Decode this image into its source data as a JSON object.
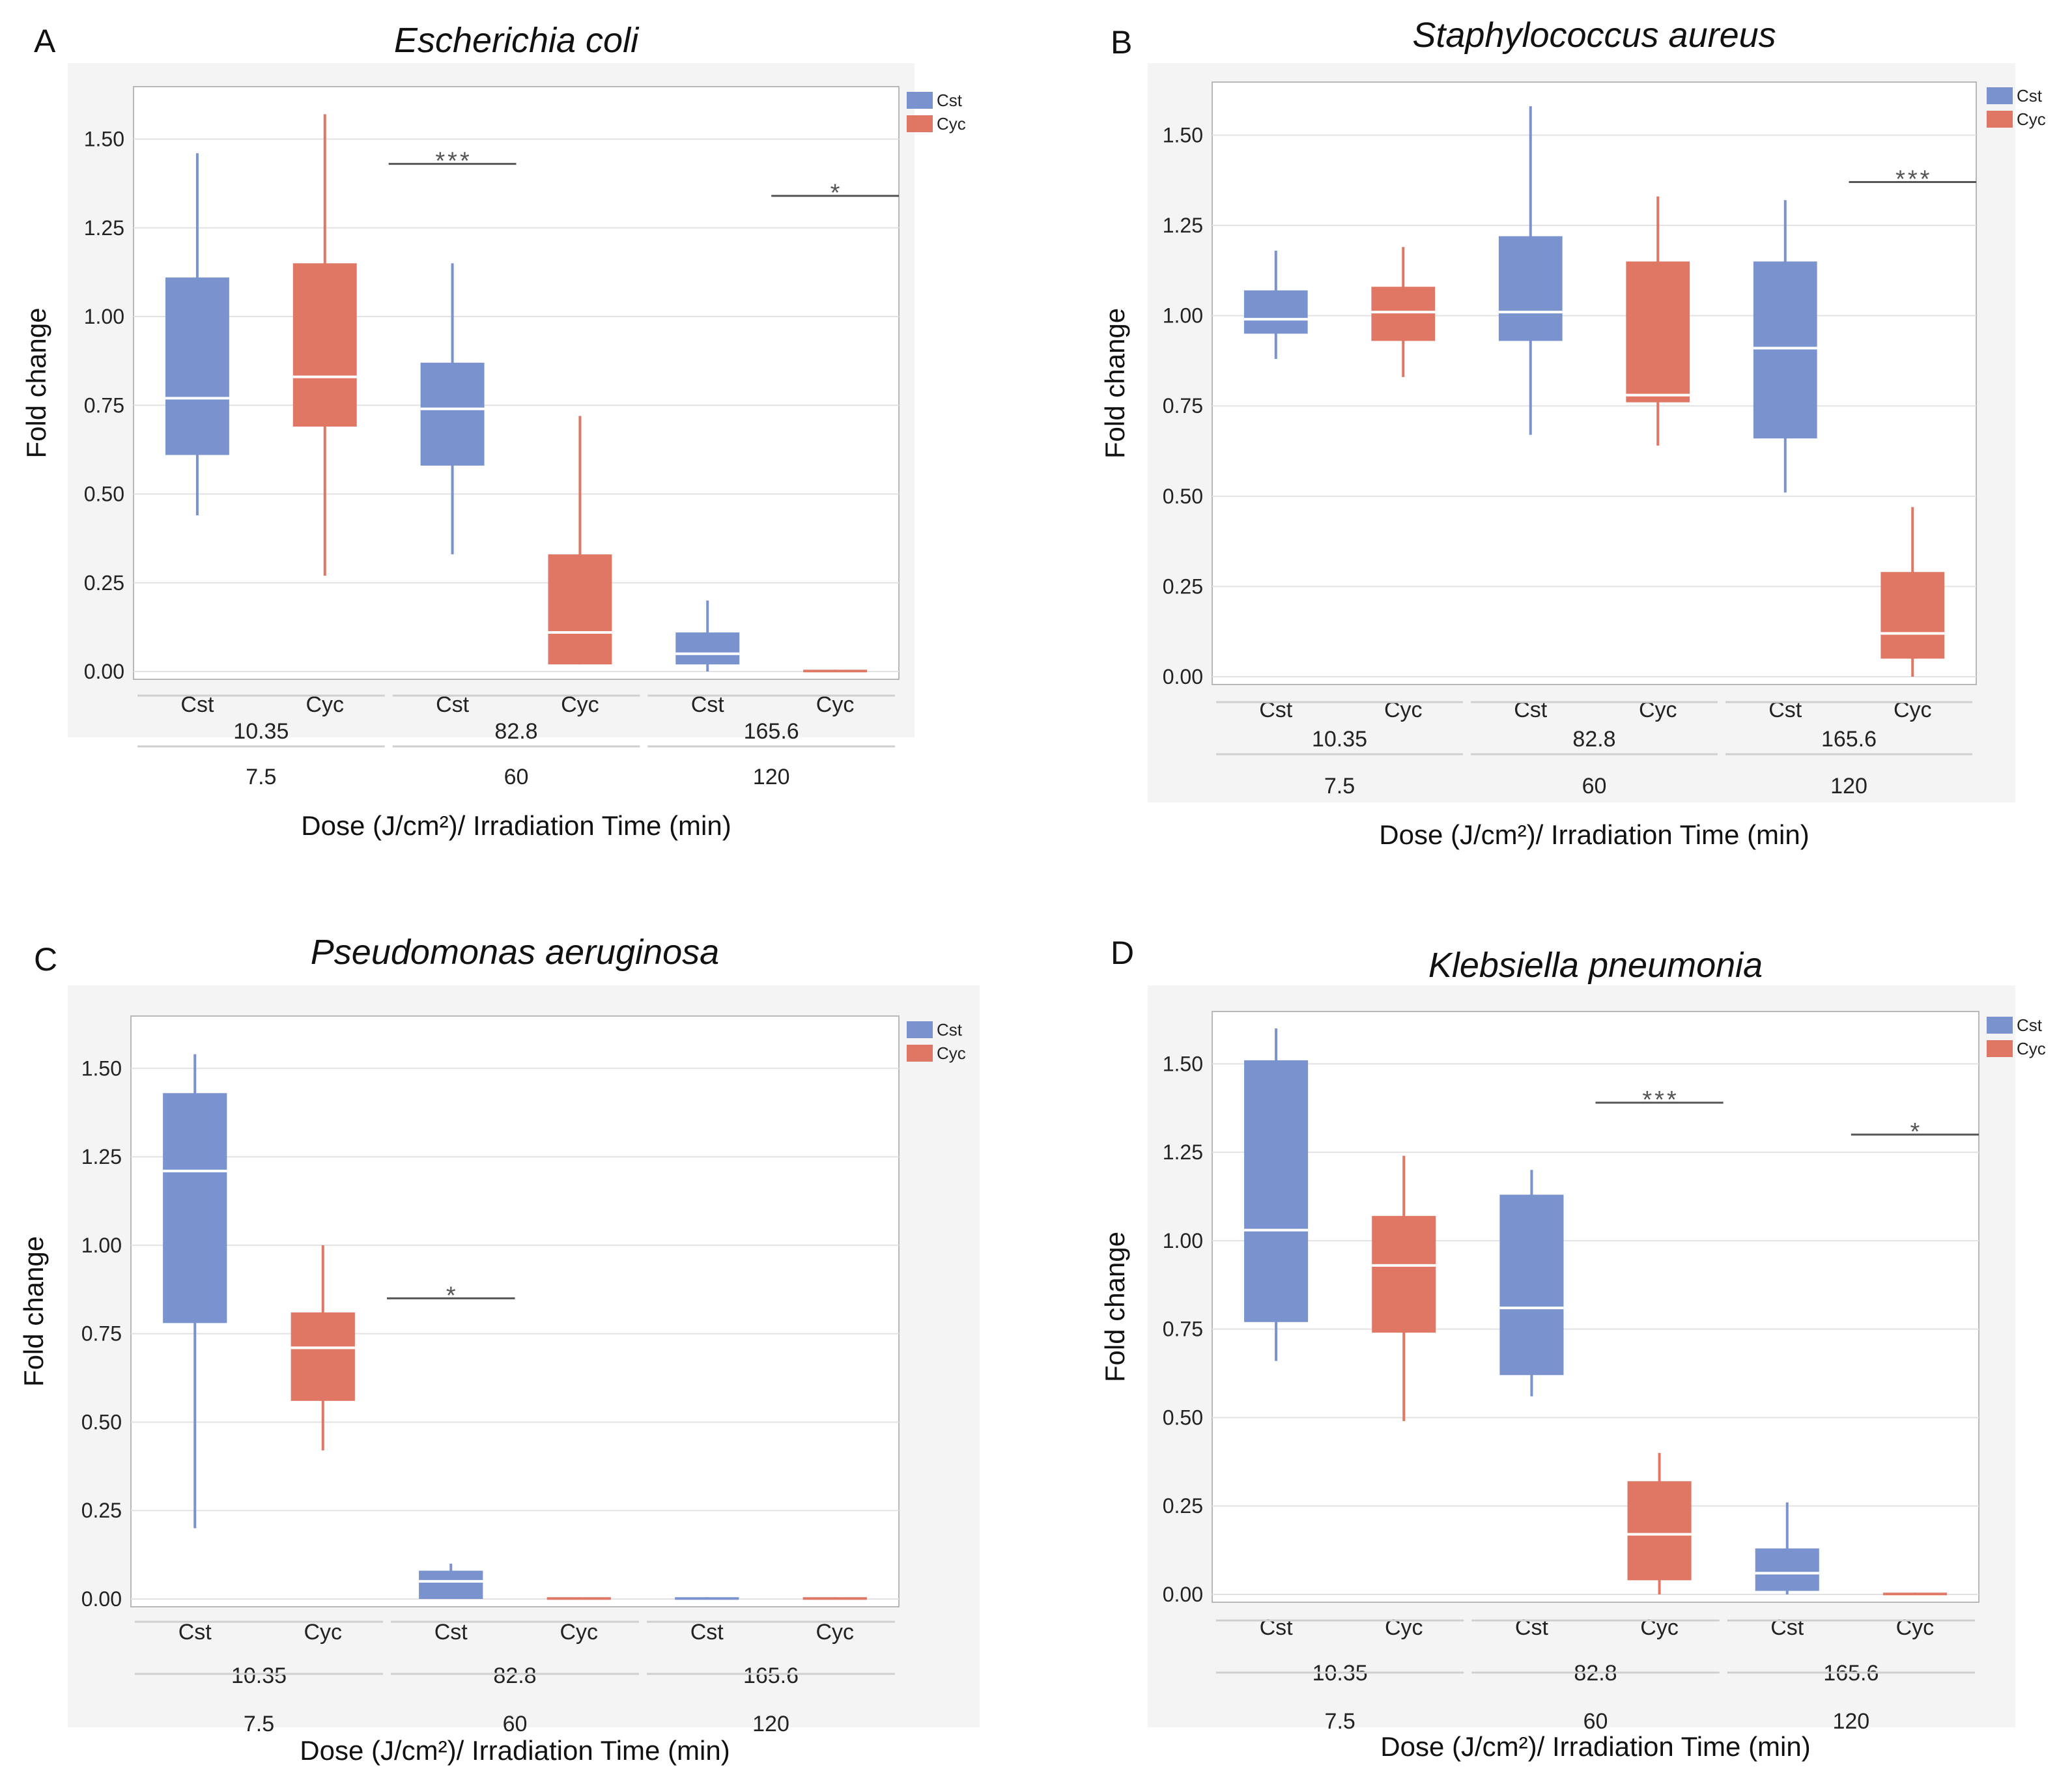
{
  "colors": {
    "cst": "#7a93cf",
    "cyc": "#e07765",
    "median": "#ffffff"
  },
  "legend": [
    "Cst",
    "Cyc"
  ],
  "chart_data": [
    {
      "type": "box",
      "panel": "A",
      "title": "Escherichia coli",
      "ylabel": "Fold change",
      "xlabel": "Dose (J/cm²)/ Irradiation Time (min)",
      "ylim": [
        0,
        1.6
      ],
      "yticks": [
        "0.00",
        "0.25",
        "0.50",
        "0.75",
        "1.00",
        "1.25",
        "1.50"
      ],
      "categories": [
        "Cst",
        "Cyc",
        "Cst",
        "Cyc",
        "Cst",
        "Cyc"
      ],
      "dose_labels": [
        "10.35",
        "82.8",
        "165.6"
      ],
      "time_labels": [
        "7.5",
        "60",
        "120"
      ],
      "boxes": [
        {
          "series": "Cst",
          "min": 0.44,
          "q1": 0.61,
          "median": 0.77,
          "q3": 1.11,
          "max": 1.46
        },
        {
          "series": "Cyc",
          "min": 0.27,
          "q1": 0.69,
          "median": 0.83,
          "q3": 1.15,
          "max": 1.57
        },
        {
          "series": "Cst",
          "min": 0.33,
          "q1": 0.58,
          "median": 0.74,
          "q3": 0.87,
          "max": 1.15
        },
        {
          "series": "Cyc",
          "min": 0.02,
          "q1": 0.02,
          "median": 0.11,
          "q3": 0.33,
          "max": 0.72
        },
        {
          "series": "Cst",
          "min": 0.0,
          "q1": 0.02,
          "median": 0.05,
          "q3": 0.11,
          "max": 0.2
        },
        {
          "series": "Cyc",
          "min": 0.0,
          "q1": 0.0,
          "median": 0.0,
          "q3": 0.005,
          "max": 0.005
        }
      ],
      "significance": [
        {
          "box": 2,
          "label": "***",
          "y": 1.43
        },
        {
          "box": 5,
          "label": "*",
          "y": 1.34
        }
      ]
    },
    {
      "type": "box",
      "panel": "B",
      "title": "Staphylococcus aureus",
      "ylabel": "Fold change",
      "xlabel": "Dose (J/cm²)/ Irradiation Time (min)",
      "ylim": [
        0,
        1.6
      ],
      "yticks": [
        "0.00",
        "0.25",
        "0.50",
        "0.75",
        "1.00",
        "1.25",
        "1.50"
      ],
      "categories": [
        "Cst",
        "Cyc",
        "Cst",
        "Cyc",
        "Cst",
        "Cyc"
      ],
      "dose_labels": [
        "10.35",
        "82.8",
        "165.6"
      ],
      "time_labels": [
        "7.5",
        "60",
        "120"
      ],
      "boxes": [
        {
          "series": "Cst",
          "min": 0.88,
          "q1": 0.95,
          "median": 0.99,
          "q3": 1.07,
          "max": 1.18
        },
        {
          "series": "Cyc",
          "min": 0.83,
          "q1": 0.93,
          "median": 1.01,
          "q3": 1.08,
          "max": 1.19
        },
        {
          "series": "Cst",
          "min": 0.67,
          "q1": 0.93,
          "median": 1.01,
          "q3": 1.22,
          "max": 1.58
        },
        {
          "series": "Cyc",
          "min": 0.64,
          "q1": 0.76,
          "median": 0.78,
          "q3": 1.15,
          "max": 1.33
        },
        {
          "series": "Cst",
          "min": 0.51,
          "q1": 0.66,
          "median": 0.91,
          "q3": 1.15,
          "max": 1.32
        },
        {
          "series": "Cyc",
          "min": 0.0,
          "q1": 0.05,
          "median": 0.12,
          "q3": 0.29,
          "max": 0.47
        }
      ],
      "significance": [
        {
          "box": 5,
          "label": "***",
          "y": 1.37
        }
      ]
    },
    {
      "type": "box",
      "panel": "C",
      "title": "Pseudomonas aeruginosa",
      "ylabel": "Fold change",
      "xlabel": "Dose (J/cm²)/ Irradiation Time (min)",
      "ylim": [
        0,
        1.6
      ],
      "yticks": [
        "0.00",
        "0.25",
        "0.50",
        "0.75",
        "1.00",
        "1.25",
        "1.50"
      ],
      "categories": [
        "Cst",
        "Cyc",
        "Cst",
        "Cyc",
        "Cst",
        "Cyc"
      ],
      "dose_labels": [
        "10.35",
        "82.8",
        "165.6"
      ],
      "time_labels": [
        "7.5",
        "60",
        "120"
      ],
      "boxes": [
        {
          "series": "Cst",
          "min": 0.2,
          "q1": 0.78,
          "median": 1.21,
          "q3": 1.43,
          "max": 1.54
        },
        {
          "series": "Cyc",
          "min": 0.42,
          "q1": 0.56,
          "median": 0.71,
          "q3": 0.81,
          "max": 1.0
        },
        {
          "series": "Cst",
          "min": 0.0,
          "q1": 0.0,
          "median": 0.05,
          "q3": 0.08,
          "max": 0.1
        },
        {
          "series": "Cyc",
          "min": 0.0,
          "q1": 0.0,
          "median": 0.0,
          "q3": 0.005,
          "max": 0.005
        },
        {
          "series": "Cst",
          "min": 0.0,
          "q1": 0.0,
          "median": 0.0,
          "q3": 0.005,
          "max": 0.005
        },
        {
          "series": "Cyc",
          "min": 0.0,
          "q1": 0.0,
          "median": 0.0,
          "q3": 0.005,
          "max": 0.005
        }
      ],
      "significance": [
        {
          "box": 2,
          "label": "*",
          "y": 0.85
        }
      ]
    },
    {
      "type": "box",
      "panel": "D",
      "title": "Klebsiella pneumonia",
      "ylabel": "Fold change",
      "xlabel": "Dose (J/cm²)/ Irradiation Time (min)",
      "ylim": [
        0,
        1.6
      ],
      "yticks": [
        "0.00",
        "0.25",
        "0.50",
        "0.75",
        "1.00",
        "1.25",
        "1.50"
      ],
      "categories": [
        "Cst",
        "Cyc",
        "Cst",
        "Cyc",
        "Cst",
        "Cyc"
      ],
      "dose_labels": [
        "10.35",
        "82.8",
        "165.6"
      ],
      "time_labels": [
        "7.5",
        "60",
        "120"
      ],
      "boxes": [
        {
          "series": "Cst",
          "min": 0.66,
          "q1": 0.77,
          "median": 1.03,
          "q3": 1.51,
          "max": 1.6
        },
        {
          "series": "Cyc",
          "min": 0.49,
          "q1": 0.74,
          "median": 0.93,
          "q3": 1.07,
          "max": 1.24
        },
        {
          "series": "Cst",
          "min": 0.56,
          "q1": 0.62,
          "median": 0.81,
          "q3": 1.13,
          "max": 1.2
        },
        {
          "series": "Cyc",
          "min": 0.0,
          "q1": 0.04,
          "median": 0.17,
          "q3": 0.32,
          "max": 0.4
        },
        {
          "series": "Cst",
          "min": 0.0,
          "q1": 0.01,
          "median": 0.06,
          "q3": 0.13,
          "max": 0.26
        },
        {
          "series": "Cyc",
          "min": 0.0,
          "q1": 0.0,
          "median": 0.0,
          "q3": 0.005,
          "max": 0.005
        }
      ],
      "significance": [
        {
          "box": 3,
          "label": "***",
          "y": 1.39
        },
        {
          "box": 5,
          "label": "*",
          "y": 1.3
        }
      ]
    }
  ]
}
